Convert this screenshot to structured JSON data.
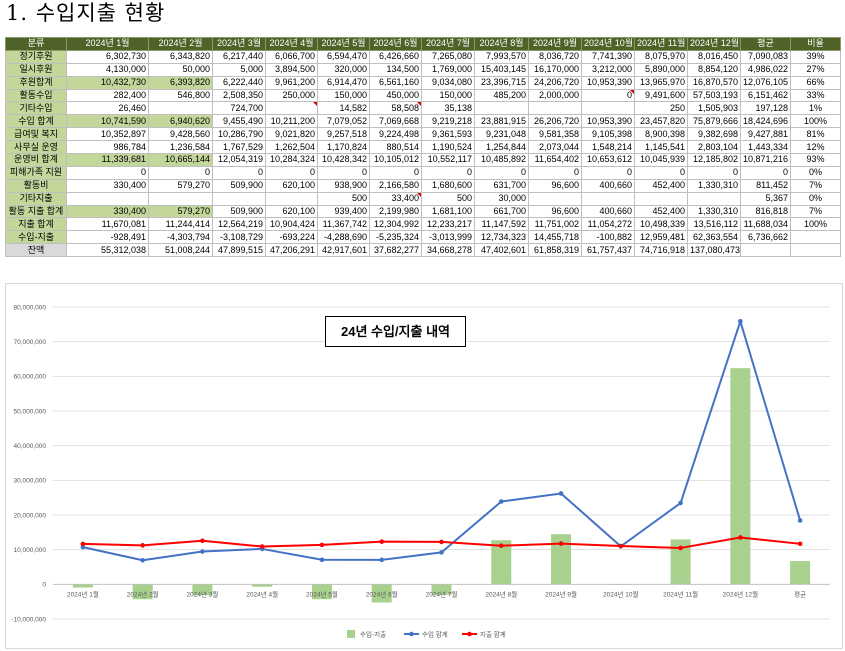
{
  "title": "1. 수입지출 현황",
  "colors": {
    "header_bg": "#4f6228",
    "label_bg": "#c4d79b",
    "highlight_bg": "#c4d79b",
    "total_label_bg": "#d9d9d9",
    "gridline": "#d9d9d9"
  },
  "table": {
    "headers": [
      "분류",
      "2024년 1월",
      "2024년 2월",
      "2024년 3월",
      "2024년 4월",
      "2024년 5월",
      "2024년 6월",
      "2024년 7월",
      "2024년 8월",
      "2024년 9월",
      "2024년 10월",
      "2024년 11월",
      "2024년 12월",
      "평균",
      "비율"
    ],
    "rows": [
      {
        "label": "정기후원",
        "values": [
          "6,302,730",
          "6,343,820",
          "6,217,440",
          "6,066,700",
          "6,594,470",
          "6,426,660",
          "7,265,080",
          "7,993,570",
          "8,036,720",
          "7,741,390",
          "8,075,970",
          "8,016,450"
        ],
        "avg": "7,090,083",
        "ratio": "39%"
      },
      {
        "label": "일시후원",
        "values": [
          "4,130,000",
          "50,000",
          "5,000",
          "3,894,500",
          "320,000",
          "134,500",
          "1,769,000",
          "15,403,145",
          "16,170,000",
          "3,212,000",
          "5,890,000",
          "8,854,120"
        ],
        "avg": "4,986,022",
        "ratio": "27%"
      },
      {
        "label": "후원합계",
        "values": [
          "10,432,730",
          "6,393,820",
          "6,222,440",
          "9,961,200",
          "6,914,470",
          "6,561,160",
          "9,034,080",
          "23,396,715",
          "24,206,720",
          "10,953,390",
          "13,965,970",
          "16,870,570"
        ],
        "avg": "12,076,105",
        "ratio": "66%",
        "highlight_cells": [
          0,
          1
        ]
      },
      {
        "label": "활동수입",
        "values": [
          "282,400",
          "546,800",
          "2,508,350",
          "250,000",
          "150,000",
          "450,000",
          "150,000",
          "485,200",
          "2,000,000",
          "0",
          "9,491,600",
          "57,503,193"
        ],
        "avg": "6,151,462",
        "ratio": "33%",
        "comment_marks": [
          9
        ]
      },
      {
        "label": "기타수입",
        "values": [
          "26,460",
          "",
          "724,700",
          "",
          "14,582",
          "58,508",
          "35,138",
          "",
          "",
          "",
          "250",
          "1,505,903"
        ],
        "avg": "197,128",
        "ratio": "1%",
        "comment_marks": [
          3,
          5
        ]
      },
      {
        "label": "수입 합계",
        "values": [
          "10,741,590",
          "6,940,620",
          "9,455,490",
          "10,211,200",
          "7,079,052",
          "7,069,668",
          "9,219,218",
          "23,881,915",
          "26,206,720",
          "10,953,390",
          "23,457,820",
          "75,879,666"
        ],
        "avg": "18,424,696",
        "ratio": "100%",
        "highlight_cells": [
          0,
          1
        ]
      },
      {
        "label": "급여및 복지",
        "values": [
          "10,352,897",
          "9,428,560",
          "10,286,790",
          "9,021,820",
          "9,257,518",
          "9,224,498",
          "9,361,593",
          "9,231,048",
          "9,581,358",
          "9,105,398",
          "8,900,398",
          "9,382,698"
        ],
        "avg": "9,427,881",
        "ratio": "81%"
      },
      {
        "label": "사무실 운영",
        "values": [
          "986,784",
          "1,236,584",
          "1,767,529",
          "1,262,504",
          "1,170,824",
          "880,514",
          "1,190,524",
          "1,254,844",
          "2,073,044",
          "1,548,214",
          "1,145,541",
          "2,803,104"
        ],
        "avg": "1,443,334",
        "ratio": "12%"
      },
      {
        "label": "운영비 합계",
        "values": [
          "11,339,681",
          "10,665,144",
          "12,054,319",
          "10,284,324",
          "10,428,342",
          "10,105,012",
          "10,552,117",
          "10,485,892",
          "11,654,402",
          "10,653,612",
          "10,045,939",
          "12,185,802"
        ],
        "avg": "10,871,216",
        "ratio": "93%",
        "highlight_cells": [
          0,
          1
        ]
      },
      {
        "label": "피해가족 지원",
        "values": [
          "0",
          "0",
          "0",
          "0",
          "0",
          "0",
          "0",
          "0",
          "0",
          "0",
          "0",
          "0"
        ],
        "avg": "0",
        "ratio": "0%"
      },
      {
        "label": "활동비",
        "values": [
          "330,400",
          "579,270",
          "509,900",
          "620,100",
          "938,900",
          "2,166,580",
          "1,680,600",
          "631,700",
          "96,600",
          "400,660",
          "452,400",
          "1,330,310"
        ],
        "avg": "811,452",
        "ratio": "7%"
      },
      {
        "label": "기타지출",
        "values": [
          "",
          "",
          "",
          "",
          "500",
          "33,400",
          "500",
          "30,000",
          "",
          "",
          "",
          ""
        ],
        "avg": "5,367",
        "ratio": "0%",
        "comment_marks": [
          5
        ]
      },
      {
        "label": "활동 지출 합계",
        "values": [
          "330,400",
          "579,270",
          "509,900",
          "620,100",
          "939,400",
          "2,199,980",
          "1,681,100",
          "661,700",
          "96,600",
          "400,660",
          "452,400",
          "1,330,310"
        ],
        "avg": "816,818",
        "ratio": "7%",
        "highlight_cells": [
          0,
          1
        ]
      },
      {
        "label": "지출 합계",
        "values": [
          "11,670,081",
          "11,244,414",
          "12,564,219",
          "10,904,424",
          "11,367,742",
          "12,304,992",
          "12,233,217",
          "11,147,592",
          "11,751,002",
          "11,054,272",
          "10,498,339",
          "13,516,112"
        ],
        "avg": "11,688,034",
        "ratio": "100%"
      },
      {
        "label": "수입-지출",
        "values": [
          "-928,491",
          "-4,303,794",
          "-3,108,729",
          "-693,224",
          "-4,288,690",
          "-5,235,324",
          "-3,013,999",
          "12,734,323",
          "14,455,718",
          "-100,882",
          "12,959,481",
          "62,363,554"
        ],
        "avg": "6,736,662",
        "ratio": ""
      },
      {
        "label": "잔액",
        "values": [
          "55,312,038",
          "51,008,244",
          "47,899,515",
          "47,206,291",
          "42,917,601",
          "37,682,277",
          "34,668,278",
          "47,402,601",
          "61,858,319",
          "61,757,437",
          "74,716,918",
          "137,080,473"
        ],
        "avg": "",
        "ratio": "",
        "label_style": "gray"
      }
    ]
  },
  "chart_data": {
    "type": "bar",
    "title": "24년 수입/지출 내역",
    "categories": [
      "2024년 1월",
      "2024년 2월",
      "2024년 3월",
      "2024년 4월",
      "2024년 5월",
      "2024년 6월",
      "2024년 7월",
      "2024년 8월",
      "2024년 9월",
      "2024년 10월",
      "2024년 11월",
      "2024년 12월",
      "평균"
    ],
    "series": [
      {
        "name": "수입-지출",
        "type": "bar",
        "color": "#a9d18e",
        "values": [
          -928491,
          -4303794,
          -3108729,
          -693224,
          -4288690,
          -5235324,
          -3013999,
          12734323,
          14455718,
          -100882,
          12959481,
          62363554,
          6736662
        ]
      },
      {
        "name": "수입 합계",
        "type": "line",
        "color": "#4472c4",
        "values": [
          10741590,
          6940620,
          9455490,
          10211200,
          7079052,
          7069668,
          9219218,
          23881915,
          26206720,
          10953390,
          23457820,
          75879666,
          18424696
        ]
      },
      {
        "name": "지출 합계",
        "type": "line",
        "color": "#ff0000",
        "values": [
          11670081,
          11244414,
          12564219,
          10904424,
          11367742,
          12304992,
          12233217,
          11147592,
          11751002,
          11054272,
          10498339,
          13516112,
          11688034
        ]
      }
    ],
    "xlabel": "",
    "ylabel": "",
    "ylim": [
      -10000000,
      80000000
    ],
    "yticks": [
      80000000,
      70000000,
      60000000,
      50000000,
      40000000,
      30000000,
      20000000,
      10000000,
      0,
      -10000000
    ],
    "ytick_labels": [
      "80,000,000",
      "70,000,000",
      "60,000,000",
      "50,000,000",
      "40,000,000",
      "30,000,000",
      "20,000,000",
      "10,000,000",
      "0",
      "-10,000,000"
    ],
    "grid": true,
    "legend": "bottom"
  }
}
